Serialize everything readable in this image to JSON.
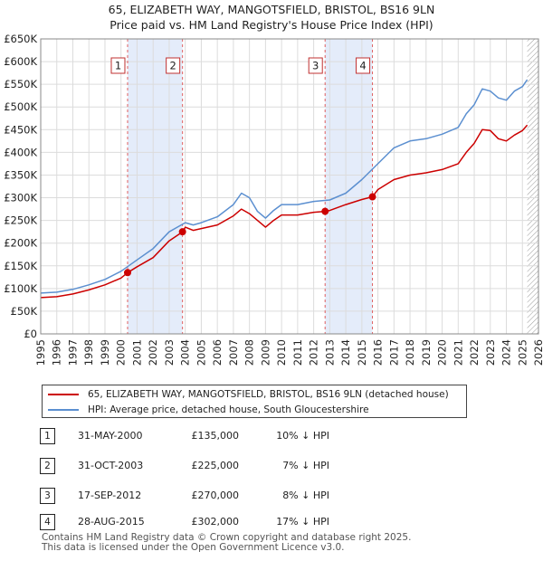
{
  "title": {
    "line1": "65, ELIZABETH WAY, MANGOTSFIELD, BRISTOL, BS16 9LN",
    "line2": "Price paid vs. HM Land Registry's House Price Index (HPI)"
  },
  "colors": {
    "property": "#cc0000",
    "hpi": "#5b8fd0",
    "shade": "#e4ecfa",
    "grid": "#dcdcdc",
    "marker_line": "#e06060"
  },
  "legend": {
    "property_label": "65, ELIZABETH WAY, MANGOTSFIELD, BRISTOL, BS16 9LN (detached house)",
    "hpi_label": "HPI: Average price, detached house, South Gloucestershire"
  },
  "transactions": [
    {
      "num": "1",
      "date": "31-MAY-2000",
      "price": "£135,000",
      "hpi": "10% ↓ HPI"
    },
    {
      "num": "2",
      "date": "31-OCT-2003",
      "price": "£225,000",
      "hpi": "7% ↓ HPI"
    },
    {
      "num": "3",
      "date": "17-SEP-2012",
      "price": "£270,000",
      "hpi": "8% ↓ HPI"
    },
    {
      "num": "4",
      "date": "28-AUG-2015",
      "price": "£302,000",
      "hpi": "17% ↓ HPI"
    }
  ],
  "footer": {
    "line1": "Contains HM Land Registry data © Crown copyright and database right 2025.",
    "line2": "This data is licensed under the Open Government Licence v3.0."
  },
  "chart_data": {
    "type": "line",
    "title": "65, ELIZABETH WAY, MANGOTSFIELD, BRISTOL, BS16 9LN",
    "subtitle": "Price paid vs. HM Land Registry's House Price Index (HPI)",
    "xlabel": "",
    "ylabel": "",
    "xlim": [
      1995,
      2026
    ],
    "ylim": [
      0,
      650000
    ],
    "x_ticks": [
      "1995",
      "1996",
      "1997",
      "1998",
      "1999",
      "2000",
      "2001",
      "2002",
      "2003",
      "2004",
      "2005",
      "2006",
      "2007",
      "2008",
      "2009",
      "2010",
      "2011",
      "2012",
      "2013",
      "2014",
      "2015",
      "2016",
      "2017",
      "2018",
      "2019",
      "2020",
      "2021",
      "2022",
      "2023",
      "2024",
      "2025",
      "2026"
    ],
    "y_ticks": [
      {
        "value": 0,
        "label": "£0"
      },
      {
        "value": 50000,
        "label": "£50K"
      },
      {
        "value": 100000,
        "label": "£100K"
      },
      {
        "value": 150000,
        "label": "£150K"
      },
      {
        "value": 200000,
        "label": "£200K"
      },
      {
        "value": 250000,
        "label": "£250K"
      },
      {
        "value": 300000,
        "label": "£300K"
      },
      {
        "value": 350000,
        "label": "£350K"
      },
      {
        "value": 400000,
        "label": "£400K"
      },
      {
        "value": 450000,
        "label": "£450K"
      },
      {
        "value": 500000,
        "label": "£500K"
      },
      {
        "value": 550000,
        "label": "£550K"
      },
      {
        "value": 600000,
        "label": "£600K"
      },
      {
        "value": 650000,
        "label": "£650K"
      }
    ],
    "grid": true,
    "shaded_periods": [
      [
        2000.41,
        2003.83
      ],
      [
        2012.71,
        2015.66
      ]
    ],
    "hatched_from": 2025.3,
    "markers": [
      {
        "label": "1",
        "x": 2000.41,
        "y": 135000
      },
      {
        "label": "2",
        "x": 2003.83,
        "y": 225000
      },
      {
        "label": "3",
        "x": 2012.71,
        "y": 270000
      },
      {
        "label": "4",
        "x": 2015.66,
        "y": 302000
      }
    ],
    "series": [
      {
        "name": "65, ELIZABETH WAY, MANGOTSFIELD, BRISTOL, BS16 9LN (detached house)",
        "color": "#cc0000",
        "x": [
          1995,
          1996,
          1997,
          1998,
          1999,
          2000,
          2000.41,
          2001,
          2002,
          2003,
          2003.83,
          2004,
          2004.5,
          2005,
          2006,
          2007,
          2007.5,
          2008,
          2008.5,
          2009,
          2009.5,
          2010,
          2011,
          2012,
          2012.71,
          2013,
          2014,
          2015,
          2015.66,
          2016,
          2017,
          2018,
          2019,
          2020,
          2021,
          2021.5,
          2022,
          2022.5,
          2023,
          2023.5,
          2024,
          2024.5,
          2025,
          2025.3
        ],
        "y": [
          80000,
          82000,
          88000,
          97000,
          108000,
          123000,
          135000,
          148000,
          168000,
          205000,
          225000,
          235000,
          228000,
          232000,
          240000,
          260000,
          275000,
          265000,
          250000,
          235000,
          250000,
          262000,
          262000,
          268000,
          270000,
          272000,
          285000,
          296000,
          302000,
          318000,
          340000,
          350000,
          355000,
          362000,
          375000,
          400000,
          420000,
          450000,
          448000,
          430000,
          425000,
          438000,
          448000,
          460000
        ]
      },
      {
        "name": "HPI: Average price, detached house, South Gloucestershire",
        "color": "#5b8fd0",
        "x": [
          1995,
          1996,
          1997,
          1998,
          1999,
          2000,
          2001,
          2002,
          2003,
          2004,
          2004.5,
          2005,
          2006,
          2007,
          2007.5,
          2008,
          2008.5,
          2009,
          2009.5,
          2010,
          2011,
          2012,
          2013,
          2014,
          2015,
          2016,
          2017,
          2018,
          2019,
          2020,
          2021,
          2021.5,
          2022,
          2022.5,
          2023,
          2023.5,
          2024,
          2024.5,
          2025,
          2025.3
        ],
        "y": [
          90000,
          92000,
          98000,
          108000,
          120000,
          138000,
          163000,
          188000,
          225000,
          245000,
          240000,
          245000,
          258000,
          285000,
          310000,
          300000,
          270000,
          255000,
          272000,
          285000,
          285000,
          292000,
          295000,
          310000,
          340000,
          375000,
          410000,
          425000,
          430000,
          440000,
          455000,
          485000,
          505000,
          540000,
          535000,
          520000,
          515000,
          535000,
          545000,
          560000
        ]
      }
    ]
  }
}
